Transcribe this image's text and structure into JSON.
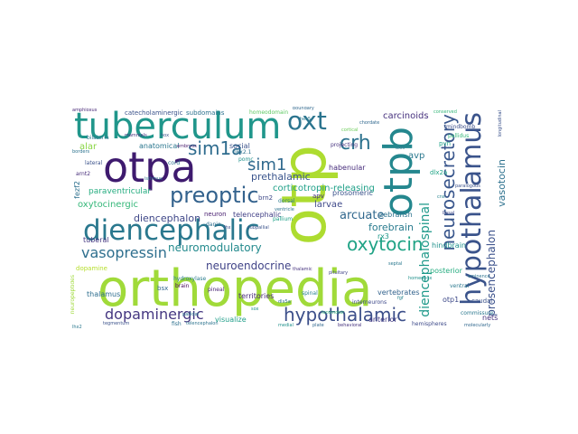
{
  "words": [
    {
      "text": "orthopedia",
      "color": "#a0da39"
    },
    {
      "text": "otp",
      "color": "#addc30"
    },
    {
      "text": "otpa",
      "color": "#3e1a6e"
    },
    {
      "text": "otpb",
      "color": "#24878e"
    },
    {
      "text": "tuberculum",
      "color": "#20968b"
    },
    {
      "text": "diencephalic",
      "color": "#2a788e"
    },
    {
      "text": "hypothalamus",
      "color": "#3a538b"
    },
    {
      "text": "neurosecretory",
      "color": "#39568c"
    },
    {
      "text": "oxt",
      "color": "#2b748e"
    },
    {
      "text": "crh",
      "color": "#2c728e"
    },
    {
      "text": "sim1a",
      "color": "#2f6c8e"
    },
    {
      "text": "sim1",
      "color": "#30698e"
    },
    {
      "text": "preoptic",
      "color": "#33628d"
    },
    {
      "text": "hypothalamic",
      "color": "#3c4f8a"
    },
    {
      "text": "oxytocin",
      "color": "#20a386"
    },
    {
      "text": "dopaminergic",
      "color": "#453781"
    },
    {
      "text": "vasopressin",
      "color": "#2e6f8e"
    },
    {
      "text": "diencephalospinal",
      "color": "#1f998a"
    },
    {
      "text": "prosencephalon",
      "color": "#3b518b"
    },
    {
      "text": "vasotocin",
      "color": "#2d718e"
    },
    {
      "text": "neuromodulatory",
      "color": "#238a8d"
    },
    {
      "text": "neuroendocrine",
      "color": "#404387"
    },
    {
      "text": "diencephalon",
      "color": "#3f4788"
    },
    {
      "text": "arcuate",
      "color": "#31688e"
    },
    {
      "text": "forebrain",
      "color": "#297b8e"
    },
    {
      "text": "oxytocinergic",
      "color": "#35b779"
    },
    {
      "text": "prethalamic",
      "color": "#3a548c"
    },
    {
      "text": "corticotropin-releasing",
      "color": "#1fa088"
    },
    {
      "text": "paraventricular",
      "color": "#27ad81"
    },
    {
      "text": "carcinoids",
      "color": "#46317e"
    },
    {
      "text": "larvae",
      "color": "#3e4989"
    },
    {
      "text": "avp",
      "color": "#2a788e"
    },
    {
      "text": "alar",
      "color": "#8bd646"
    },
    {
      "text": "anatomical",
      "color": "#2a768e"
    },
    {
      "text": "habenular",
      "color": "#472d7b"
    },
    {
      "text": "prosomeric",
      "color": "#3b528b"
    },
    {
      "text": "zebrafish",
      "color": "#2c728e"
    },
    {
      "text": "vertebrates",
      "color": "#33638d"
    },
    {
      "text": "telencephalic",
      "color": "#424086"
    },
    {
      "text": "territories",
      "color": "#482878"
    },
    {
      "text": "visualize",
      "color": "#1f9e89"
    },
    {
      "text": "anterior",
      "color": "#443b84"
    },
    {
      "text": "nets",
      "color": "#46327e"
    },
    {
      "text": "hemispheres",
      "color": "#3e4a89"
    },
    {
      "text": "thalamus",
      "color": "#2e6e8e"
    },
    {
      "text": "dopamine",
      "color": "#b5de2b"
    },
    {
      "text": "tuberal",
      "color": "#453882"
    },
    {
      "text": "neuron",
      "color": "#481f70"
    },
    {
      "text": "danio",
      "color": "#2e6e8e"
    },
    {
      "text": "brain",
      "color": "#440154"
    },
    {
      "text": "hindbrain",
      "color": "#21918c"
    },
    {
      "text": "posterior",
      "color": "#27ad81"
    },
    {
      "text": "rx3",
      "color": "#1f988b"
    },
    {
      "text": "fish",
      "color": "#2d708e"
    },
    {
      "text": "telencephalon",
      "color": "#2c738e"
    },
    {
      "text": "pineal",
      "color": "#482173"
    },
    {
      "text": "social",
      "color": "#3b528b"
    },
    {
      "text": "pomc",
      "color": "#21918c"
    },
    {
      "text": "otp1",
      "color": "#3e4a89"
    },
    {
      "text": "caudal",
      "color": "#3b528b"
    },
    {
      "text": "commissure",
      "color": "#2a788e"
    },
    {
      "text": "spinal",
      "color": "#26828e"
    },
    {
      "text": "fezf2",
      "color": "#2d708e"
    },
    {
      "text": "bilateria",
      "color": "#2a778e"
    },
    {
      "text": "lateral",
      "color": "#3b528b"
    },
    {
      "text": "arnt2",
      "color": "#472c7a"
    },
    {
      "text": "pvn",
      "color": "#1fa187"
    },
    {
      "text": "dlx2a",
      "color": "#20a486"
    },
    {
      "text": "mindbomb",
      "color": "#3c4f8a"
    },
    {
      "text": "pallidus",
      "color": "#34b679"
    },
    {
      "text": "cord",
      "color": "#2c728e"
    },
    {
      "text": "hydroxylase",
      "color": "#287c8e"
    },
    {
      "text": "bsx",
      "color": "#31688e"
    },
    {
      "text": "apv",
      "color": "#46327e"
    },
    {
      "text": "pallium",
      "color": "#1fa188"
    },
    {
      "text": "dorsal",
      "color": "#2a788e"
    },
    {
      "text": "ventral",
      "color": "#2a788e"
    },
    {
      "text": "brn2",
      "color": "#3e4a89"
    },
    {
      "text": "catecholaminergic",
      "color": "#3b528b"
    },
    {
      "text": "subdomains",
      "color": "#2c728e"
    },
    {
      "text": "homeodomain",
      "color": "#5ec962"
    },
    {
      "text": "boundary",
      "color": "#31688e"
    },
    {
      "text": "embryos",
      "color": "#481a6c"
    },
    {
      "text": "nkx2.1",
      "color": "#2c728e"
    },
    {
      "text": "neuropeptides",
      "color": "#9fda3a"
    },
    {
      "text": "longitudinal",
      "color": "#3b528b"
    },
    {
      "text": "ventricle",
      "color": "#2c728e"
    },
    {
      "text": "cns",
      "color": "#26828e"
    },
    {
      "text": "projecting",
      "color": "#46327e"
    },
    {
      "text": "interneurons",
      "color": "#3e4989"
    },
    {
      "text": "locomotor",
      "color": "#35b779"
    },
    {
      "text": "amphioxus",
      "color": "#482878"
    },
    {
      "text": "borders",
      "color": "#2c728e"
    },
    {
      "text": "lhx2",
      "color": "#2a788e"
    },
    {
      "text": "tegmentum",
      "color": "#3b528b"
    },
    {
      "text": "medial",
      "color": "#21918c"
    },
    {
      "text": "pituitary",
      "color": "#414487"
    },
    {
      "text": "plate",
      "color": "#31688e"
    },
    {
      "text": "dlx5a",
      "color": "#2c728e"
    },
    {
      "text": "behavioral",
      "color": "#46327e"
    },
    {
      "text": "molecularly",
      "color": "#31688e"
    },
    {
      "text": "hes5",
      "color": "#2a788e"
    },
    {
      "text": "cortical",
      "color": "#6ccd5a"
    },
    {
      "text": "homeobox",
      "color": "#21918c"
    },
    {
      "text": "paralogous",
      "color": "#3b528b"
    },
    {
      "text": "eminence",
      "color": "#2c728e"
    },
    {
      "text": "fgf",
      "color": "#26828e"
    },
    {
      "text": "lhx",
      "color": "#3e4a89"
    },
    {
      "text": "pallidal",
      "color": "#2c728e"
    },
    {
      "text": "thalamic",
      "color": "#46327e"
    },
    {
      "text": "septal",
      "color": "#2a788e"
    },
    {
      "text": "subpallial",
      "color": "#3b528b"
    },
    {
      "text": "sox",
      "color": "#21918c"
    },
    {
      "text": "chordate",
      "color": "#31688e"
    },
    {
      "text": "conserved",
      "color": "#35b779"
    },
    {
      "text": "isthmus",
      "color": "#2c728e"
    },
    {
      "text": "mammals",
      "color": "#46327e"
    },
    {
      "text": "hox",
      "color": "#3b528b"
    },
    {
      "text": "axis",
      "color": "#2a788e"
    },
    {
      "text": "basal",
      "color": "#3e4a89"
    }
  ]
}
